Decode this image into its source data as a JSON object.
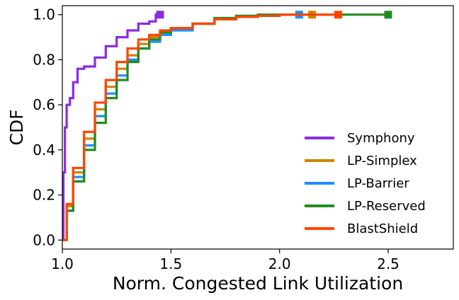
{
  "chart_data": {
    "type": "line",
    "title": "",
    "xlabel": "Norm. Congested Link Utilization",
    "ylabel": "CDF",
    "xlim": [
      1.0,
      2.8
    ],
    "ylim": [
      -0.04,
      1.04
    ],
    "xticks": [
      1.0,
      1.5,
      2.0,
      2.5
    ],
    "xtick_labels": [
      "1.0",
      "1.5",
      "2.0",
      "2.5"
    ],
    "yticks": [
      0.0,
      0.2,
      0.4,
      0.6,
      0.8,
      1.0
    ],
    "ytick_labels": [
      "0.0",
      "0.2",
      "0.4",
      "0.6",
      "0.8",
      "1.0"
    ],
    "grid": false,
    "legend_position": "bottom-right",
    "series": [
      {
        "name": "Symphony",
        "color": "#8a2be2",
        "end_marker": "square",
        "points": [
          [
            1.0,
            0.0
          ],
          [
            1.005,
            0.3
          ],
          [
            1.012,
            0.5
          ],
          [
            1.02,
            0.6
          ],
          [
            1.035,
            0.63
          ],
          [
            1.05,
            0.7
          ],
          [
            1.07,
            0.76
          ],
          [
            1.1,
            0.77
          ],
          [
            1.15,
            0.81
          ],
          [
            1.2,
            0.86
          ],
          [
            1.25,
            0.9
          ],
          [
            1.3,
            0.93
          ],
          [
            1.35,
            0.96
          ],
          [
            1.4,
            0.97
          ],
          [
            1.43,
            1.0
          ],
          [
            1.45,
            1.0
          ]
        ]
      },
      {
        "name": "LP-Simplex",
        "color": "#cc8500",
        "end_marker": "square",
        "points": [
          [
            1.0,
            0.0
          ],
          [
            1.02,
            0.15
          ],
          [
            1.05,
            0.3
          ],
          [
            1.1,
            0.45
          ],
          [
            1.15,
            0.58
          ],
          [
            1.2,
            0.68
          ],
          [
            1.25,
            0.76
          ],
          [
            1.3,
            0.82
          ],
          [
            1.35,
            0.87
          ],
          [
            1.4,
            0.9
          ],
          [
            1.45,
            0.92
          ],
          [
            1.5,
            0.94
          ],
          [
            1.6,
            0.96
          ],
          [
            1.7,
            0.98
          ],
          [
            1.8,
            0.99
          ],
          [
            1.9,
            0.995
          ],
          [
            2.0,
            1.0
          ],
          [
            2.15,
            1.0
          ]
        ]
      },
      {
        "name": "LP-Barrier",
        "color": "#1e90ff",
        "end_marker": "square",
        "points": [
          [
            1.0,
            0.0
          ],
          [
            1.02,
            0.13
          ],
          [
            1.05,
            0.28
          ],
          [
            1.1,
            0.42
          ],
          [
            1.15,
            0.55
          ],
          [
            1.2,
            0.65
          ],
          [
            1.25,
            0.73
          ],
          [
            1.3,
            0.8
          ],
          [
            1.35,
            0.85
          ],
          [
            1.4,
            0.88
          ],
          [
            1.45,
            0.91
          ],
          [
            1.5,
            0.93
          ],
          [
            1.6,
            0.96
          ],
          [
            1.7,
            0.98
          ],
          [
            1.8,
            0.99
          ],
          [
            1.9,
            0.995
          ],
          [
            2.0,
            1.0
          ],
          [
            2.09,
            1.0
          ]
        ]
      },
      {
        "name": "LP-Reserved",
        "color": "#228b22",
        "end_marker": "square",
        "points": [
          [
            1.0,
            0.0
          ],
          [
            1.02,
            0.13
          ],
          [
            1.05,
            0.26
          ],
          [
            1.1,
            0.4
          ],
          [
            1.15,
            0.52
          ],
          [
            1.2,
            0.63
          ],
          [
            1.25,
            0.71
          ],
          [
            1.3,
            0.79
          ],
          [
            1.35,
            0.85
          ],
          [
            1.4,
            0.89
          ],
          [
            1.45,
            0.92
          ],
          [
            1.5,
            0.94
          ],
          [
            1.6,
            0.96
          ],
          [
            1.7,
            0.985
          ],
          [
            1.8,
            0.995
          ],
          [
            1.9,
            1.0
          ],
          [
            2.0,
            1.0
          ],
          [
            2.5,
            1.0
          ]
        ]
      },
      {
        "name": "BlastShield",
        "color": "#ff4500",
        "end_marker": "square",
        "points": [
          [
            1.0,
            0.0
          ],
          [
            1.02,
            0.16
          ],
          [
            1.05,
            0.32
          ],
          [
            1.1,
            0.48
          ],
          [
            1.15,
            0.61
          ],
          [
            1.2,
            0.71
          ],
          [
            1.25,
            0.79
          ],
          [
            1.3,
            0.85
          ],
          [
            1.35,
            0.89
          ],
          [
            1.4,
            0.91
          ],
          [
            1.45,
            0.93
          ],
          [
            1.5,
            0.94
          ],
          [
            1.6,
            0.96
          ],
          [
            1.7,
            0.98
          ],
          [
            1.8,
            0.99
          ],
          [
            1.9,
            0.995
          ],
          [
            2.0,
            1.0
          ],
          [
            2.27,
            1.0
          ]
        ]
      }
    ]
  }
}
